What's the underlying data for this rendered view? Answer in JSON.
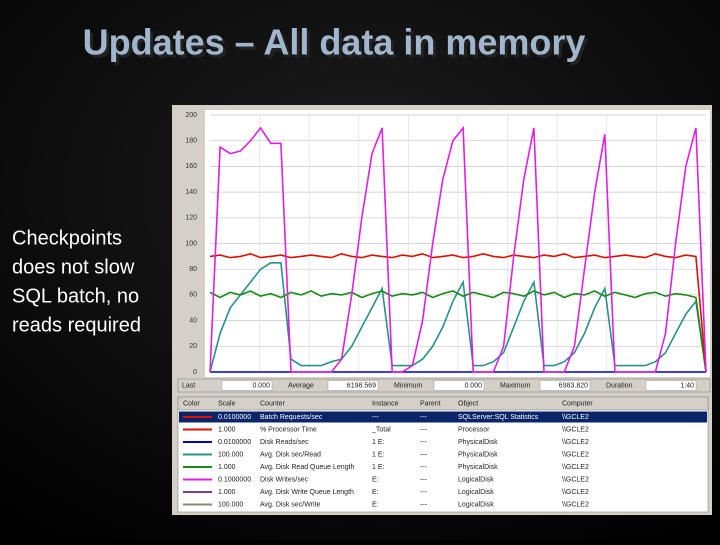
{
  "slide": {
    "title": "Updates – All data in memory",
    "text_lines": [
      "Checkpoints",
      "does not slow",
      "SQL batch, no",
      "reads required"
    ]
  },
  "chart_data": {
    "type": "line",
    "ylim": [
      0,
      200
    ],
    "yticks": [
      0,
      20,
      40,
      60,
      80,
      100,
      120,
      140,
      160,
      180,
      200
    ],
    "grid": true,
    "series": [
      {
        "color": "#0000cc",
        "values": [
          0,
          0,
          0,
          0,
          0,
          0,
          0,
          0,
          0,
          0,
          0,
          0,
          0,
          0,
          0,
          0,
          0,
          0,
          0,
          0,
          0,
          0,
          0,
          0,
          0,
          0,
          0,
          0,
          0,
          0,
          0,
          0,
          0,
          0,
          0,
          0,
          0,
          0,
          0,
          0,
          0,
          0,
          0,
          0,
          0,
          0,
          0,
          0,
          0,
          0
        ]
      },
      {
        "color": "#2a8f8f",
        "values": [
          0,
          30,
          50,
          60,
          70,
          80,
          85,
          85,
          10,
          5,
          5,
          5,
          8,
          10,
          20,
          35,
          50,
          65,
          5,
          5,
          5,
          10,
          20,
          35,
          55,
          70,
          5,
          5,
          8,
          15,
          35,
          55,
          70,
          5,
          5,
          8,
          15,
          30,
          50,
          65,
          5,
          5,
          5,
          5,
          8,
          15,
          30,
          45,
          55,
          0
        ]
      },
      {
        "color": "#1a8a1a",
        "values": [
          62,
          58,
          62,
          60,
          63,
          59,
          61,
          58,
          62,
          60,
          63,
          59,
          61,
          60,
          62,
          58,
          61,
          63,
          59,
          61,
          60,
          62,
          58,
          61,
          63,
          59,
          62,
          60,
          58,
          62,
          61,
          59,
          63,
          60,
          62,
          58,
          61,
          60,
          63,
          59,
          62,
          60,
          58,
          61,
          62,
          59,
          61,
          60,
          58,
          0
        ]
      },
      {
        "color": "#dd1100",
        "values": [
          90,
          91,
          89,
          90,
          92,
          89,
          90,
          91,
          89,
          90,
          91,
          90,
          89,
          92,
          90,
          89,
          91,
          90,
          89,
          91,
          90,
          92,
          89,
          90,
          91,
          89,
          90,
          92,
          90,
          89,
          91,
          90,
          89,
          91,
          90,
          92,
          89,
          90,
          91,
          89,
          90,
          91,
          90,
          89,
          92,
          90,
          89,
          91,
          90,
          0
        ]
      },
      {
        "color": "#e020e0",
        "values": [
          0,
          175,
          170,
          172,
          180,
          190,
          178,
          178,
          0,
          0,
          0,
          0,
          0,
          10,
          60,
          120,
          170,
          190,
          0,
          0,
          5,
          40,
          100,
          150,
          180,
          190,
          0,
          0,
          0,
          20,
          90,
          150,
          190,
          0,
          0,
          0,
          20,
          80,
          140,
          185,
          0,
          0,
          0,
          0,
          0,
          30,
          100,
          160,
          190,
          0
        ]
      }
    ]
  },
  "stats": [
    {
      "label": "Last",
      "value": "0.000"
    },
    {
      "label": "Average",
      "value": "6198.569"
    },
    {
      "label": "Minimum",
      "value": "0.000"
    },
    {
      "label": "Maximum",
      "value": "6983.820"
    },
    {
      "label": "Duration",
      "value": "1:40"
    }
  ],
  "legend_table": {
    "headers": [
      "Color",
      "Scale",
      "Counter",
      "Instance",
      "Parent",
      "Object",
      "Computer"
    ],
    "colors": [
      "#dd1100",
      "#dd1100",
      "#0000cc",
      "#2a8f8f",
      "#1a8a1a",
      "#e020e0",
      "#7a3a9a",
      "#8a8a6a"
    ],
    "rows": [
      [
        "0.0100000",
        "Batch Requests/sec",
        "---",
        "---",
        "SQLServer:SQL Statistics",
        "\\\\GCLE2"
      ],
      [
        "1.000",
        "% Processor Time",
        "_Total",
        "---",
        "Processor",
        "\\\\GCLE2"
      ],
      [
        "0.0100000",
        "Disk Reads/sec",
        "1 E:",
        "---",
        "PhysicalDisk",
        "\\\\GCLE2"
      ],
      [
        "100.000",
        "Avg. Disk sec/Read",
        "1 E:",
        "---",
        "PhysicalDisk",
        "\\\\GCLE2"
      ],
      [
        "1.000",
        "Avg. Disk Read Queue Length",
        "1 E:",
        "---",
        "PhysicalDisk",
        "\\\\GCLE2"
      ],
      [
        "0.1000000",
        "Disk Writes/sec",
        "E:",
        "---",
        "LogicalDisk",
        "\\\\GCLE2"
      ],
      [
        "1.000",
        "Avg. Disk Write Queue Length",
        "E:",
        "---",
        "LogicalDisk",
        "\\\\GCLE2"
      ],
      [
        "100.000",
        "Avg. Disk sec/Write",
        "E:",
        "---",
        "LogicalDisk",
        "\\\\GCLE2"
      ]
    ]
  }
}
